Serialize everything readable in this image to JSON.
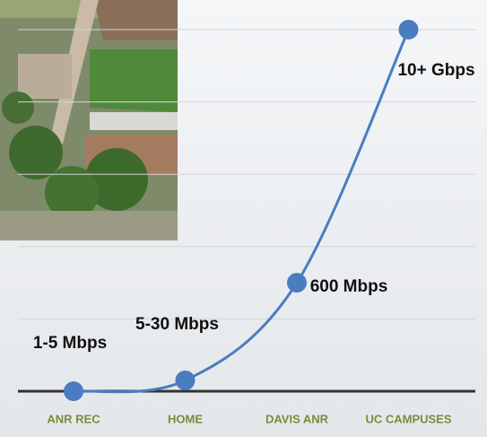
{
  "chart_data": {
    "type": "line",
    "categories": [
      "ANR REC",
      "HOME",
      "DAVIS ANR",
      "UC CAMPUSES"
    ],
    "values": [
      0,
      0.15,
      1.5,
      5
    ],
    "annotations": [
      "1-5 Mbps",
      "5-30 Mbps",
      "600 Mbps",
      "10+ Gbps"
    ],
    "color": "#4a7cc0",
    "ylim": [
      0,
      5
    ],
    "yticks": [
      0,
      1,
      2,
      3,
      4,
      5
    ],
    "grid": true
  }
}
